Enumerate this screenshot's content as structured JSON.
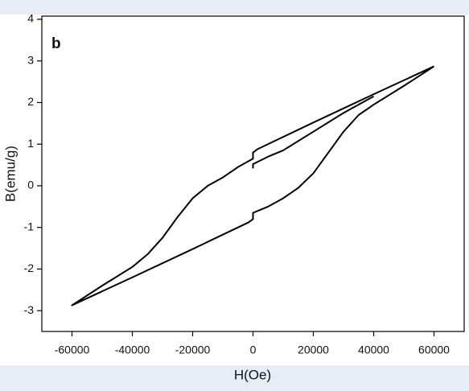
{
  "chart_data": {
    "type": "line",
    "annotation": "b",
    "x_label": "H(Oe)",
    "y_label": "B(emu/g)",
    "x": [
      60000,
      40000,
      20000,
      1500,
      0,
      0,
      -5000,
      -10000,
      -15000,
      -20000,
      -25000,
      -30000,
      -35000,
      -40000,
      -50000,
      -60000,
      -40000,
      -20000,
      -1500,
      0,
      0,
      5000,
      10000,
      15000,
      20000,
      25000,
      30000,
      35000,
      40000,
      50000,
      60000,
      null,
      0,
      0,
      5000,
      10000,
      20000,
      30000,
      40000
    ],
    "values": [
      2.87,
      2.2,
      1.52,
      0.88,
      0.8,
      0.65,
      0.45,
      0.2,
      0.0,
      -0.3,
      -0.75,
      -1.25,
      -1.65,
      -1.95,
      -2.4,
      -2.87,
      -2.2,
      -1.52,
      -0.88,
      -0.8,
      -0.65,
      -0.5,
      -0.3,
      -0.05,
      0.3,
      0.8,
      1.3,
      1.7,
      1.95,
      2.4,
      2.87,
      null,
      0.42,
      0.52,
      0.7,
      0.85,
      1.3,
      1.75,
      2.15
    ],
    "color": "#000000",
    "xlim": [
      -70000,
      70000
    ],
    "ylim": [
      -3.5,
      4
    ],
    "xticks": [
      -60000,
      -40000,
      -20000,
      0,
      20000,
      40000,
      60000
    ],
    "yticks": [
      -3,
      -2,
      -1,
      0,
      1,
      2,
      3,
      4
    ]
  }
}
